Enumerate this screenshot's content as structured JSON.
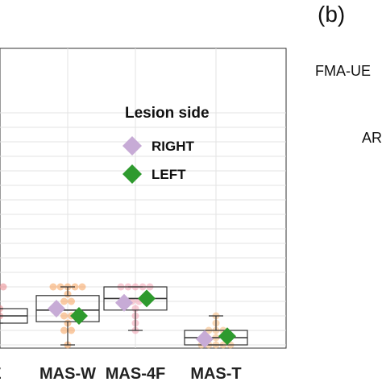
{
  "panel_b": {
    "label": "(b)",
    "row_labels": [
      "FMA-UE",
      "AR"
    ]
  },
  "chart_data": {
    "type": "box",
    "categories": [
      "E",
      "MAS-W",
      "MAS-4F",
      "MAS-T"
    ],
    "ylim": [
      0,
      4
    ],
    "grid": true,
    "legend": {
      "title": "Lesion side",
      "placement": "top-right",
      "entries": [
        {
          "name": "RIGHT",
          "color": "#c7abd6",
          "marker": "diamond"
        },
        {
          "name": "LEFT",
          "color": "#2e9a2e",
          "marker": "diamond"
        }
      ]
    },
    "boxes": [
      {
        "category": "E",
        "q1": 0.75,
        "median": 1.0,
        "q3": 1.25,
        "whisker_low": 0.75,
        "whisker_high": 1.25,
        "mean_right": null,
        "mean_left": null,
        "point_color": "#e8858a"
      },
      {
        "category": "MAS-W",
        "q1": 0.8,
        "median": 1.2,
        "q3": 1.7,
        "whisker_low": 0.0,
        "whisker_high": 2.0,
        "mean_right": 1.25,
        "mean_left": 1.0,
        "point_color": "#f5a05a"
      },
      {
        "category": "MAS-4F",
        "q1": 1.2,
        "median": 1.6,
        "q3": 2.0,
        "whisker_low": 0.5,
        "whisker_high": 2.0,
        "mean_right": 1.45,
        "mean_left": 1.6,
        "point_color": "#f3a1b0"
      },
      {
        "category": "MAS-T",
        "q1": 0.0,
        "median": 0.25,
        "q3": 0.5,
        "whisker_low": 0.0,
        "whisker_high": 1.0,
        "mean_right": 0.2,
        "mean_left": 0.3,
        "point_color": "#f5b87a"
      }
    ],
    "points": [
      {
        "category": "E",
        "values": [
          0.75,
          1.0,
          1.0,
          1.25,
          1.25,
          2.0,
          2.0,
          2.0
        ]
      },
      {
        "category": "MAS-W",
        "values": [
          0.0,
          0.5,
          0.5,
          0.75,
          1.0,
          1.0,
          1.5,
          1.5,
          1.75,
          2.0,
          2.0,
          2.0,
          2.0,
          2.0
        ]
      },
      {
        "category": "MAS-4F",
        "values": [
          0.5,
          0.75,
          1.0,
          1.25,
          1.5,
          1.5,
          2.0,
          2.0,
          2.0,
          2.0,
          2.0
        ]
      },
      {
        "category": "MAS-T",
        "values": [
          0.0,
          0.0,
          0.0,
          0.0,
          0.0,
          0.25,
          0.5,
          0.5,
          0.5,
          0.75,
          1.0
        ]
      }
    ]
  }
}
